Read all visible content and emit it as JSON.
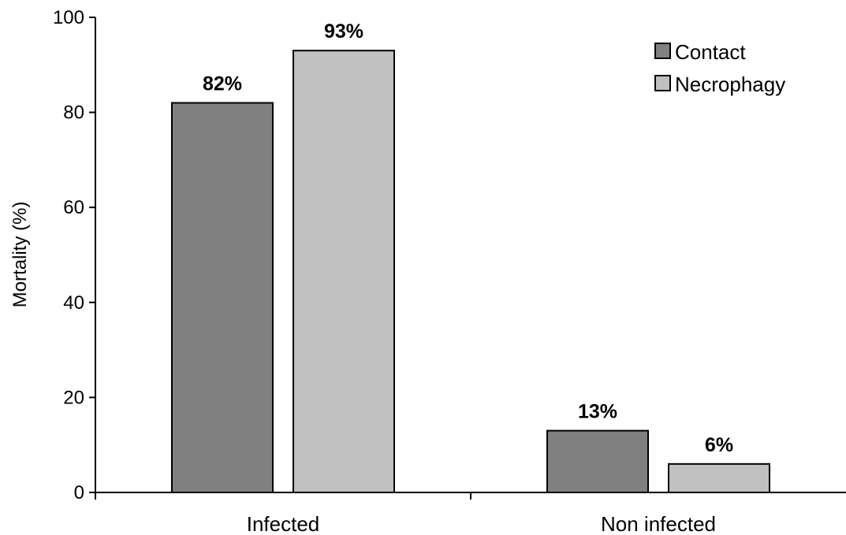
{
  "chart_data": {
    "type": "bar",
    "title": "",
    "xlabel": "",
    "ylabel": "Mortality (%)",
    "ylim": [
      0,
      100
    ],
    "yticks": [
      0,
      20,
      40,
      60,
      80,
      100
    ],
    "categories": [
      "Infected",
      "Non infected"
    ],
    "series": [
      {
        "name": "Contact",
        "values": [
          82,
          13
        ],
        "labels": [
          "82%",
          "13%"
        ],
        "color": "#808080"
      },
      {
        "name": "Necrophagy",
        "values": [
          93,
          6
        ],
        "labels": [
          "93%",
          "6%"
        ],
        "color": "#c0c0c0"
      }
    ],
    "legend_position": "top-right",
    "grid": false
  }
}
